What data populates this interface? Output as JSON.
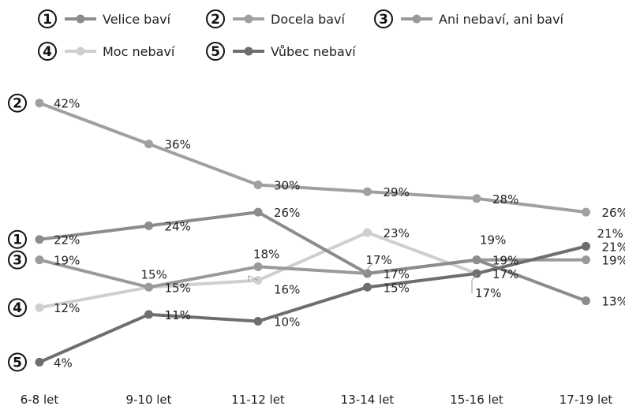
{
  "chart_data": {
    "type": "line",
    "categories": [
      "6-8 let",
      "9-10 let",
      "11-12 let",
      "13-14 let",
      "15-16 let",
      "17-19 let"
    ],
    "ylim": [
      0,
      45
    ],
    "grid": false,
    "legend_position": "top",
    "series": [
      {
        "name": "Velice baví",
        "badge": "1",
        "color": "#8c8c8c",
        "values": [
          22,
          24,
          26,
          17,
          19,
          13
        ],
        "labels": [
          "22%",
          "24%",
          "26%",
          "17%",
          "19%",
          "13%"
        ]
      },
      {
        "name": "Docela baví",
        "badge": "2",
        "color": "#a0a0a0",
        "values": [
          42,
          36,
          30,
          29,
          28,
          26
        ],
        "labels": [
          "42%",
          "36%",
          "30%",
          "29%",
          "28%",
          "26%"
        ]
      },
      {
        "name": "Ani nebaví, ani baví",
        "badge": "3",
        "color": "#9a9a9a",
        "values": [
          19,
          15,
          18,
          17,
          19,
          19
        ],
        "labels": [
          "19%",
          "15%",
          "18%",
          "17%",
          "19%",
          "19%"
        ]
      },
      {
        "name": "Moc nebaví",
        "badge": "4",
        "color": "#cfcfcf",
        "values": [
          12,
          15,
          16,
          23,
          17,
          21
        ],
        "labels": [
          "12%",
          "15%",
          "16%",
          "23%",
          "17%",
          "21%"
        ]
      },
      {
        "name": "Vůbec nebaví",
        "badge": "5",
        "color": "#6e6e6e",
        "values": [
          4,
          11,
          10,
          15,
          17,
          21
        ],
        "labels": [
          "4%",
          "11%",
          "10%",
          "15%",
          "17%",
          "21%"
        ]
      }
    ]
  }
}
